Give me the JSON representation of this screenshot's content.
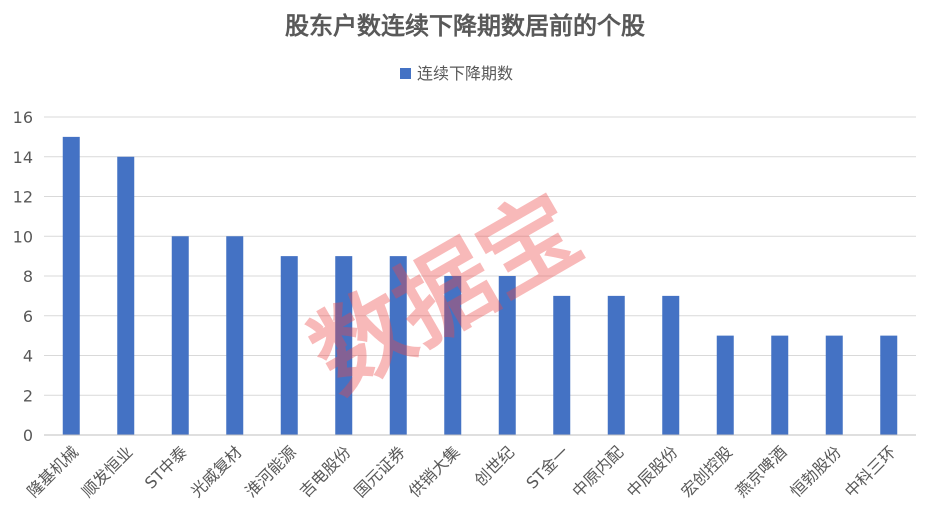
{
  "chart_data": {
    "type": "bar",
    "title": "股东户数连续下降期数居前的个股",
    "categories": [
      "隆基机械",
      "顺发恒业",
      "ST中泰",
      "光威复材",
      "淮河能源",
      "吉电股份",
      "国元证券",
      "供销大集",
      "创世纪",
      "ST金一",
      "中原内配",
      "中辰股份",
      "宏创控股",
      "燕京啤酒",
      "恒勃股份",
      "中科三环"
    ],
    "series": [
      {
        "name": "连续下降期数",
        "values": [
          15,
          14,
          10,
          10,
          9,
          9,
          9,
          8,
          8,
          7,
          7,
          7,
          5,
          5,
          5,
          5
        ]
      }
    ],
    "ylim": [
      0,
      16
    ],
    "yticks": [
      0,
      2,
      4,
      6,
      8,
      10,
      12,
      14,
      16
    ],
    "grid": true,
    "legend_position": "top-center",
    "bar_color": "#4472c4"
  },
  "watermark": "数据宝"
}
